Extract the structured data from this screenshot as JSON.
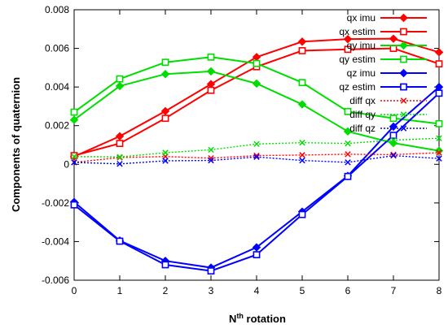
{
  "chart_data": {
    "type": "line",
    "xlabel_base": "N",
    "xlabel_sup": "th",
    "xlabel_rest": " rotation",
    "ylabel": "Components of quaternion",
    "xlim": [
      0,
      8
    ],
    "ylim": [
      -0.006,
      0.008
    ],
    "x_ticks": [
      "0",
      "1",
      "2",
      "3",
      "4",
      "5",
      "6",
      "7",
      "8"
    ],
    "y_ticks": [
      "-0.006",
      "-0.004",
      "-0.002",
      "0",
      "0.002",
      "0.004",
      "0.006",
      "0.008"
    ],
    "y_tick_values": [
      -0.006,
      -0.004,
      -0.002,
      0,
      0.002,
      0.004,
      0.006,
      0.008
    ],
    "grid": false,
    "legend_position": "top-right",
    "x": [
      0,
      1,
      2,
      3,
      4,
      5,
      6,
      7,
      8
    ],
    "series": [
      {
        "name": "qx imu",
        "color": "#ff0000",
        "marker": "diamond",
        "dash": "solid",
        "values": [
          0.0004,
          0.00145,
          0.00275,
          0.00415,
          0.00555,
          0.00635,
          0.00648,
          0.0065,
          0.0058
        ]
      },
      {
        "name": "qx estim",
        "color": "#ff0000",
        "marker": "square",
        "dash": "solid",
        "values": [
          0.00045,
          0.00108,
          0.00238,
          0.00383,
          0.00505,
          0.00588,
          0.00595,
          0.006,
          0.0052
        ]
      },
      {
        "name": "qy imu",
        "color": "#00dd00",
        "marker": "diamond",
        "dash": "solid",
        "values": [
          0.0023,
          0.00405,
          0.00467,
          0.00481,
          0.00418,
          0.0031,
          0.0017,
          0.0011,
          0.0007
        ]
      },
      {
        "name": "qy estim",
        "color": "#00dd00",
        "marker": "square",
        "dash": "solid",
        "values": [
          0.0027,
          0.00442,
          0.00528,
          0.00555,
          0.00522,
          0.00423,
          0.00273,
          0.00238,
          0.0021
        ]
      },
      {
        "name": "qz imu",
        "color": "#0000ff",
        "marker": "diamond",
        "dash": "solid",
        "values": [
          -0.00195,
          -0.00395,
          -0.005,
          -0.00535,
          -0.0043,
          -0.00245,
          -0.0006,
          0.00195,
          0.004
        ]
      },
      {
        "name": "qz estim",
        "color": "#0000ff",
        "marker": "square",
        "dash": "solid",
        "values": [
          -0.0021,
          -0.00398,
          -0.0052,
          -0.00552,
          -0.00468,
          -0.0026,
          -0.00063,
          0.0015,
          0.00368
        ]
      },
      {
        "name": "diff qx",
        "color": "#ff0000",
        "marker": "cross",
        "dash": "dotted",
        "values": [
          0.0001,
          0.00035,
          0.0004,
          0.00032,
          0.00045,
          0.00048,
          0.00052,
          0.0005,
          0.0006
        ]
      },
      {
        "name": "diff qy",
        "color": "#00dd00",
        "marker": "cross",
        "dash": "dotted",
        "values": [
          0.0004,
          0.00038,
          0.0006,
          0.00075,
          0.00105,
          0.00112,
          0.00108,
          0.00125,
          0.00135
        ]
      },
      {
        "name": "diff qz",
        "color": "#0000ff",
        "marker": "cross",
        "dash": "dotted",
        "values": [
          0.0001,
          2e-05,
          0.00018,
          0.0002,
          0.00038,
          0.0002,
          0.0001,
          0.00045,
          0.0003
        ]
      }
    ]
  }
}
